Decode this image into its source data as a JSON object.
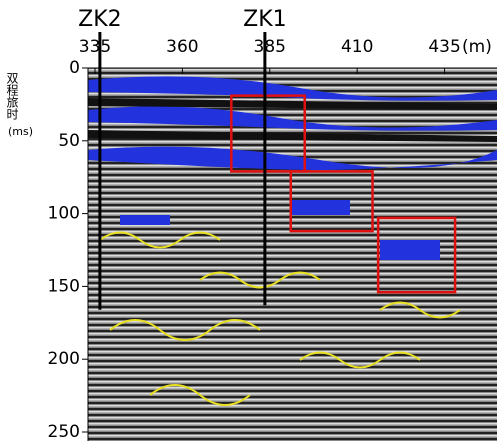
{
  "chart_data": {
    "type": "radargram",
    "x_unit": "(m)",
    "y_label": "双程旅时",
    "y_unit": "(ms)",
    "xlim": [
      333,
      450
    ],
    "xticks": [
      335,
      360,
      385,
      410,
      435
    ],
    "ylim": [
      0,
      250
    ],
    "yticks": [
      0,
      50,
      100,
      150,
      200,
      250
    ],
    "boreholes": [
      {
        "label": "ZK2",
        "x": 336.4,
        "bottom": 166
      },
      {
        "label": "ZK1",
        "x": 383.6,
        "bottom": 163
      }
    ],
    "anomaly_color": "#e01010",
    "anomalies": [
      {
        "x": [
          374,
          395
        ],
        "y": [
          19,
          71
        ]
      },
      {
        "x": [
          391,
          414.4
        ],
        "y": [
          71,
          112
        ]
      },
      {
        "x": [
          416,
          438
        ],
        "y": [
          103,
          154
        ]
      }
    ]
  }
}
